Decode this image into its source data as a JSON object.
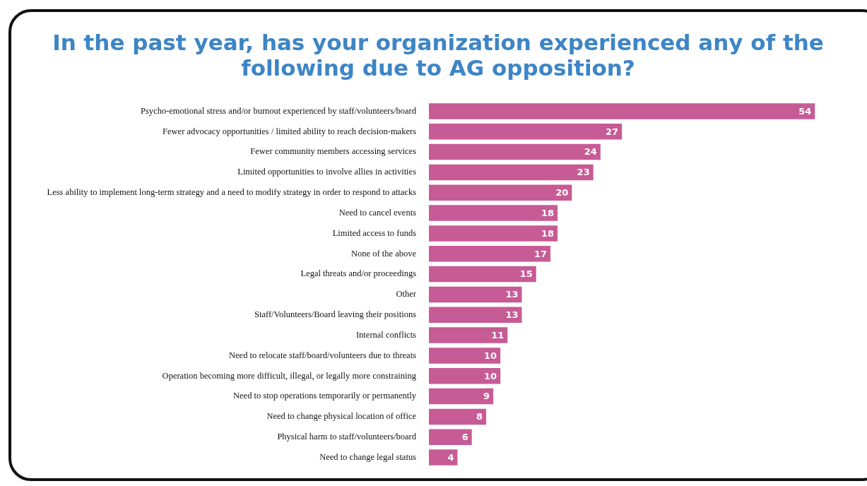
{
  "chart_data": {
    "type": "bar",
    "orientation": "horizontal",
    "title": "In the past year, has your organization experienced any of the following due to AG opposition?",
    "categories": [
      "Psycho-emotional stress and/or burnout experienced by staff/volunteers/board",
      "Fewer advocacy opportunities / limited ability to reach decision-makers",
      "Fewer community members accessing services",
      "Limited opportunities to involve allies in activities",
      "Less ability to implement long-term strategy and a need to modify strategy in order to respond to attacks",
      "Need to cancel events",
      "Limited access to funds",
      "None of the above",
      "Legal threats and/or proceedings",
      "Other",
      "Staff/Volunteers/Board leaving their positions",
      "Internal conflicts",
      "Need to relocate staff/board/volunteers due to threats",
      "Operation becoming more difficult, illegal, or legally more constraining",
      "Need to stop operations temporarily or permanently",
      "Need to change physical location of office",
      "Physical harm to staff/volunteers/board",
      "Need to change legal status"
    ],
    "values": [
      54,
      27,
      24,
      23,
      20,
      18,
      18,
      17,
      15,
      13,
      13,
      11,
      10,
      10,
      9,
      8,
      6,
      4
    ],
    "color": "#c75b95",
    "data_labels": true,
    "tick_labels": "y",
    "legend": false
  }
}
